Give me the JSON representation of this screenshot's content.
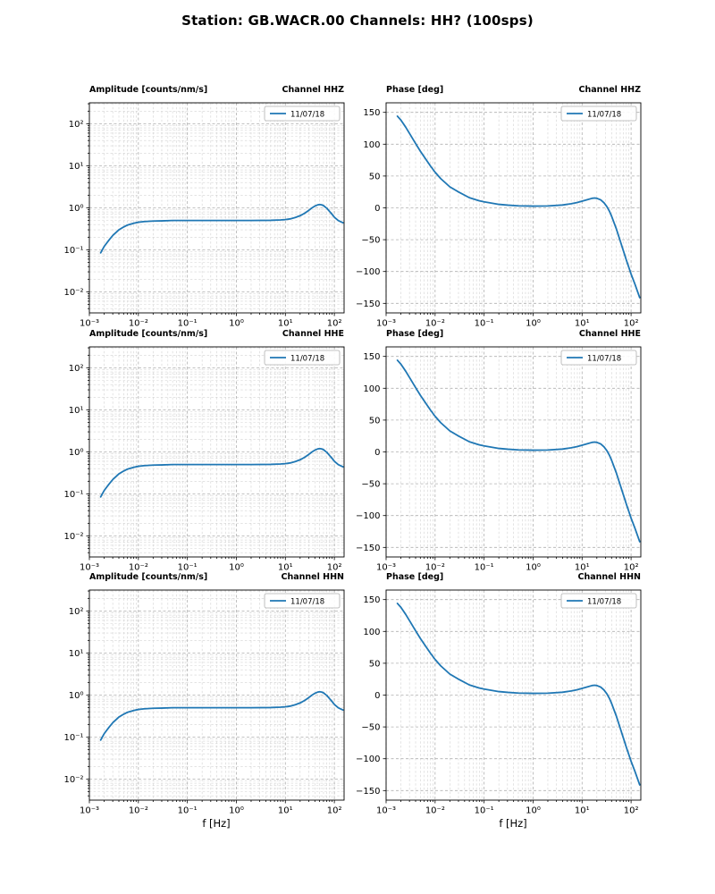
{
  "figure": {
    "title": "Station: GB.WACR.00 Channels: HH? (100sps)",
    "xlabel": "f [Hz]",
    "line_color": "#1f77b4",
    "legend_label": "11/07/18"
  },
  "chart_data": [
    {
      "id": "amplitude-hhz",
      "type": "line",
      "title": "Amplitude [counts/nm/s]",
      "channel": "Channel HHZ",
      "xscale": "log",
      "yscale": "log",
      "xlim": [
        0.001,
        158
      ],
      "ylim": [
        0.00316,
        316
      ],
      "grid": "both",
      "legend_position": "upper right",
      "x_ticks": {
        "values": [
          0.001,
          0.01,
          0.1,
          1,
          10,
          100
        ],
        "labels": [
          "10⁻³",
          "10⁻²",
          "10⁻¹",
          "10⁰",
          "10¹",
          "10²"
        ]
      },
      "y_ticks": {
        "values": [
          100,
          10,
          1,
          0.1,
          0.01
        ],
        "labels": [
          "10²",
          "10¹",
          "10⁰",
          "10⁻¹",
          "10⁻²"
        ]
      },
      "series": [
        {
          "name": "11/07/18",
          "color": "#1f77b4",
          "x": [
            0.0017,
            0.002,
            0.0025,
            0.003,
            0.004,
            0.005,
            0.006,
            0.008,
            0.01,
            0.013,
            0.02,
            0.03,
            0.05,
            0.1,
            0.2,
            0.5,
            1,
            2,
            5,
            8,
            10,
            13,
            16,
            20,
            25,
            30,
            35,
            40,
            45,
            50,
            55,
            60,
            70,
            80,
            90,
            100,
            120,
            150
          ],
          "y": [
            0.085,
            0.12,
            0.17,
            0.22,
            0.3,
            0.35,
            0.39,
            0.43,
            0.455,
            0.47,
            0.485,
            0.49,
            0.5,
            0.5,
            0.5,
            0.5,
            0.5,
            0.5,
            0.505,
            0.515,
            0.525,
            0.55,
            0.59,
            0.65,
            0.75,
            0.87,
            1.0,
            1.1,
            1.17,
            1.2,
            1.18,
            1.13,
            0.98,
            0.82,
            0.7,
            0.6,
            0.5,
            0.44
          ]
        }
      ]
    },
    {
      "id": "phase-hhz",
      "type": "line",
      "title": "Phase [deg]",
      "channel": "Channel HHZ",
      "xscale": "log",
      "yscale": "linear",
      "xlim": [
        0.001,
        158
      ],
      "ylim": [
        -165,
        165
      ],
      "grid": "both",
      "legend_position": "upper right",
      "x_ticks": {
        "values": [
          0.001,
          0.01,
          0.1,
          1,
          10,
          100
        ],
        "labels": [
          "10⁻³",
          "10⁻²",
          "10⁻¹",
          "10⁰",
          "10¹",
          "10²"
        ]
      },
      "y_ticks": {
        "values": [
          150,
          100,
          50,
          0,
          -50,
          -100,
          -150
        ],
        "labels": [
          "150",
          "100",
          "50",
          "0",
          "−50",
          "−100",
          "−150"
        ]
      },
      "series": [
        {
          "name": "11/07/18",
          "color": "#1f77b4",
          "x": [
            0.0017,
            0.002,
            0.0025,
            0.003,
            0.004,
            0.005,
            0.006,
            0.008,
            0.01,
            0.013,
            0.02,
            0.03,
            0.05,
            0.08,
            0.1,
            0.2,
            0.3,
            0.5,
            1,
            2,
            4,
            6,
            8,
            10,
            13,
            16,
            18,
            20,
            24,
            28,
            32,
            36,
            40,
            50,
            60,
            70,
            80,
            100,
            120,
            150
          ],
          "y": [
            144,
            138,
            127,
            117,
            101,
            89,
            80,
            66,
            56,
            46,
            33,
            25,
            16,
            11,
            9.5,
            5.5,
            4.3,
            3.2,
            2.7,
            3,
            4.5,
            6.5,
            8.5,
            10.5,
            13,
            15,
            15.5,
            15,
            12.5,
            8,
            2,
            -5,
            -13,
            -33,
            -52,
            -68,
            -82,
            -104,
            -120,
            -141
          ]
        }
      ]
    },
    {
      "id": "amplitude-hhe",
      "type": "line",
      "title": "Amplitude [counts/nm/s]",
      "channel": "Channel HHE",
      "xscale": "log",
      "yscale": "log",
      "xlim": [
        0.001,
        158
      ],
      "ylim": [
        0.00316,
        316
      ],
      "grid": "both",
      "legend_position": "upper right",
      "x_ticks": {
        "values": [
          0.001,
          0.01,
          0.1,
          1,
          10,
          100
        ],
        "labels": [
          "10⁻³",
          "10⁻²",
          "10⁻¹",
          "10⁰",
          "10¹",
          "10²"
        ]
      },
      "y_ticks": {
        "values": [
          100,
          10,
          1,
          0.1,
          0.01
        ],
        "labels": [
          "10²",
          "10¹",
          "10⁰",
          "10⁻¹",
          "10⁻²"
        ]
      },
      "series": [
        {
          "name": "11/07/18",
          "color": "#1f77b4",
          "x": [
            0.0017,
            0.002,
            0.0025,
            0.003,
            0.004,
            0.005,
            0.006,
            0.008,
            0.01,
            0.013,
            0.02,
            0.03,
            0.05,
            0.1,
            0.2,
            0.5,
            1,
            2,
            5,
            8,
            10,
            13,
            16,
            20,
            25,
            30,
            35,
            40,
            45,
            50,
            55,
            60,
            70,
            80,
            90,
            100,
            120,
            150
          ],
          "y": [
            0.085,
            0.12,
            0.17,
            0.22,
            0.3,
            0.35,
            0.39,
            0.43,
            0.455,
            0.47,
            0.485,
            0.49,
            0.5,
            0.5,
            0.5,
            0.5,
            0.5,
            0.5,
            0.505,
            0.515,
            0.525,
            0.55,
            0.59,
            0.65,
            0.75,
            0.87,
            1.0,
            1.1,
            1.17,
            1.2,
            1.18,
            1.13,
            0.98,
            0.82,
            0.7,
            0.6,
            0.5,
            0.44
          ]
        }
      ]
    },
    {
      "id": "phase-hhe",
      "type": "line",
      "title": "Phase [deg]",
      "channel": "Channel HHE",
      "xscale": "log",
      "yscale": "linear",
      "xlim": [
        0.001,
        158
      ],
      "ylim": [
        -165,
        165
      ],
      "grid": "both",
      "legend_position": "upper right",
      "x_ticks": {
        "values": [
          0.001,
          0.01,
          0.1,
          1,
          10,
          100
        ],
        "labels": [
          "10⁻³",
          "10⁻²",
          "10⁻¹",
          "10⁰",
          "10¹",
          "10²"
        ]
      },
      "y_ticks": {
        "values": [
          150,
          100,
          50,
          0,
          -50,
          -100,
          -150
        ],
        "labels": [
          "150",
          "100",
          "50",
          "0",
          "−50",
          "−100",
          "−150"
        ]
      },
      "series": [
        {
          "name": "11/07/18",
          "color": "#1f77b4",
          "x": [
            0.0017,
            0.002,
            0.0025,
            0.003,
            0.004,
            0.005,
            0.006,
            0.008,
            0.01,
            0.013,
            0.02,
            0.03,
            0.05,
            0.08,
            0.1,
            0.2,
            0.3,
            0.5,
            1,
            2,
            4,
            6,
            8,
            10,
            13,
            16,
            18,
            20,
            24,
            28,
            32,
            36,
            40,
            50,
            60,
            70,
            80,
            100,
            120,
            150
          ],
          "y": [
            144,
            138,
            127,
            117,
            101,
            89,
            80,
            66,
            56,
            46,
            33,
            25,
            16,
            11,
            9.5,
            5.5,
            4.3,
            3.2,
            2.7,
            3,
            4.5,
            6.5,
            8.5,
            10.5,
            13,
            15,
            15.5,
            15,
            12.5,
            8,
            2,
            -5,
            -13,
            -33,
            -52,
            -68,
            -82,
            -104,
            -120,
            -141
          ]
        }
      ]
    },
    {
      "id": "amplitude-hhn",
      "type": "line",
      "title": "Amplitude [counts/nm/s]",
      "channel": "Channel HHN",
      "xscale": "log",
      "yscale": "log",
      "xlim": [
        0.001,
        158
      ],
      "ylim": [
        0.00316,
        316
      ],
      "grid": "both",
      "legend_position": "upper right",
      "x_ticks": {
        "values": [
          0.001,
          0.01,
          0.1,
          1,
          10,
          100
        ],
        "labels": [
          "10⁻³",
          "10⁻²",
          "10⁻¹",
          "10⁰",
          "10¹",
          "10²"
        ]
      },
      "y_ticks": {
        "values": [
          100,
          10,
          1,
          0.1,
          0.01
        ],
        "labels": [
          "10²",
          "10¹",
          "10⁰",
          "10⁻¹",
          "10⁻²"
        ]
      },
      "series": [
        {
          "name": "11/07/18",
          "color": "#1f77b4",
          "x": [
            0.0017,
            0.002,
            0.0025,
            0.003,
            0.004,
            0.005,
            0.006,
            0.008,
            0.01,
            0.013,
            0.02,
            0.03,
            0.05,
            0.1,
            0.2,
            0.5,
            1,
            2,
            5,
            8,
            10,
            13,
            16,
            20,
            25,
            30,
            35,
            40,
            45,
            50,
            55,
            60,
            70,
            80,
            90,
            100,
            120,
            150
          ],
          "y": [
            0.085,
            0.12,
            0.17,
            0.22,
            0.3,
            0.35,
            0.39,
            0.43,
            0.455,
            0.47,
            0.485,
            0.49,
            0.5,
            0.5,
            0.5,
            0.5,
            0.5,
            0.5,
            0.505,
            0.515,
            0.525,
            0.55,
            0.59,
            0.65,
            0.75,
            0.87,
            1.0,
            1.1,
            1.17,
            1.2,
            1.18,
            1.13,
            0.98,
            0.82,
            0.7,
            0.6,
            0.5,
            0.44
          ]
        }
      ]
    },
    {
      "id": "phase-hhn",
      "type": "line",
      "title": "Phase [deg]",
      "channel": "Channel HHN",
      "xscale": "log",
      "yscale": "linear",
      "xlim": [
        0.001,
        158
      ],
      "ylim": [
        -165,
        165
      ],
      "grid": "both",
      "legend_position": "upper right",
      "x_ticks": {
        "values": [
          0.001,
          0.01,
          0.1,
          1,
          10,
          100
        ],
        "labels": [
          "10⁻³",
          "10⁻²",
          "10⁻¹",
          "10⁰",
          "10¹",
          "10²"
        ]
      },
      "y_ticks": {
        "values": [
          150,
          100,
          50,
          0,
          -50,
          -100,
          -150
        ],
        "labels": [
          "150",
          "100",
          "50",
          "0",
          "−50",
          "−100",
          "−150"
        ]
      },
      "series": [
        {
          "name": "11/07/18",
          "color": "#1f77b4",
          "x": [
            0.0017,
            0.002,
            0.0025,
            0.003,
            0.004,
            0.005,
            0.006,
            0.008,
            0.01,
            0.013,
            0.02,
            0.03,
            0.05,
            0.08,
            0.1,
            0.2,
            0.3,
            0.5,
            1,
            2,
            4,
            6,
            8,
            10,
            13,
            16,
            18,
            20,
            24,
            28,
            32,
            36,
            40,
            50,
            60,
            70,
            80,
            100,
            120,
            150
          ],
          "y": [
            144,
            138,
            127,
            117,
            101,
            89,
            80,
            66,
            56,
            46,
            33,
            25,
            16,
            11,
            9.5,
            5.5,
            4.3,
            3.2,
            2.7,
            3,
            4.5,
            6.5,
            8.5,
            10.5,
            13,
            15,
            15.5,
            15,
            12.5,
            8,
            2,
            -5,
            -13,
            -33,
            -52,
            -68,
            -82,
            -104,
            -120,
            -141
          ]
        }
      ]
    }
  ]
}
